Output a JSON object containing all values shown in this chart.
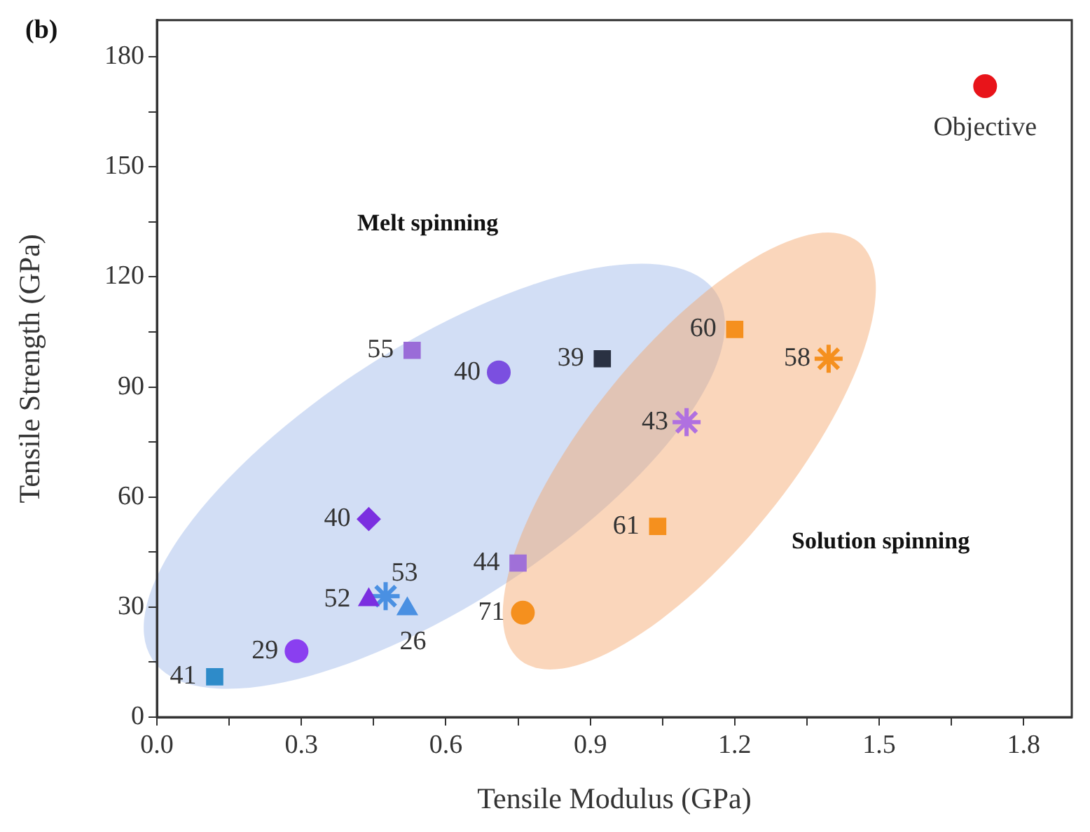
{
  "chart_data": {
    "type": "scatter",
    "xlabel": "Tensile Modulus (GPa)",
    "ylabel": "Tensile Strength (GPa)",
    "xlim": [
      0,
      1.9
    ],
    "ylim": [
      0,
      190
    ],
    "xticks": [
      {
        "value": 0,
        "label": "0.0"
      },
      {
        "value": 0.15,
        "label": null
      },
      {
        "value": 0.3,
        "label": "0.3"
      },
      {
        "value": 0.45,
        "label": null
      },
      {
        "value": 0.6,
        "label": "0.6"
      },
      {
        "value": 0.75,
        "label": null
      },
      {
        "value": 0.9,
        "label": "0.9"
      },
      {
        "value": 1.05,
        "label": null
      },
      {
        "value": 1.2,
        "label": "1.2"
      },
      {
        "value": 1.35,
        "label": null
      },
      {
        "value": 1.5,
        "label": "1.5"
      },
      {
        "value": 1.65,
        "label": null
      },
      {
        "value": 1.8,
        "label": "1.8"
      }
    ],
    "yticks": [
      0,
      {
        "value": 15,
        "label": null
      },
      30,
      {
        "value": 45,
        "label": null
      },
      60,
      {
        "value": 75,
        "label": null
      },
      90,
      {
        "value": 105,
        "label": null
      },
      120,
      {
        "value": 135,
        "label": null
      },
      150,
      {
        "value": 165,
        "label": null
      },
      180
    ],
    "grid": false,
    "legend": false,
    "series": [
      {
        "x": [
          0.12
        ],
        "values": [
          11
        ],
        "color": "#2e8bc9",
        "marker": "square"
      },
      {
        "x": [
          0.29
        ],
        "values": [
          18
        ],
        "color": "#8a3ff0",
        "marker": "circle"
      },
      {
        "x": [
          0.44
        ],
        "values": [
          32
        ],
        "color": "#7b2fe0",
        "marker": "triangle"
      },
      {
        "x": [
          0.475
        ],
        "values": [
          33
        ],
        "color": "#4a90e2",
        "marker": "cross"
      },
      {
        "x": [
          0.52
        ],
        "values": [
          29.5
        ],
        "color": "#4a90e2",
        "marker": "triangle"
      },
      {
        "x": [
          0.44
        ],
        "values": [
          54
        ],
        "color": "#7b2fe0",
        "marker": "diamond"
      },
      {
        "x": [
          0.53
        ],
        "values": [
          100
        ],
        "color": "#9a6cd8",
        "marker": "square"
      },
      {
        "x": [
          0.71
        ],
        "values": [
          94
        ],
        "color": "#7b4fe0",
        "marker": "circle"
      },
      {
        "x": [
          0.925
        ],
        "values": [
          97.7
        ],
        "color": "#2a3142",
        "marker": "square"
      },
      {
        "x": [
          0.75
        ],
        "values": [
          42
        ],
        "color": "#a070d8",
        "marker": "square"
      },
      {
        "x": [
          0.76
        ],
        "values": [
          28.5
        ],
        "color": "#f5901e",
        "marker": "circle"
      },
      {
        "x": [
          1.2
        ],
        "values": [
          105.7
        ],
        "color": "#f5901e",
        "marker": "square"
      },
      {
        "x": [
          1.395
        ],
        "values": [
          97.7
        ],
        "color": "#f5901e",
        "marker": "cross"
      },
      {
        "x": [
          1.1
        ],
        "values": [
          80.4
        ],
        "color": "#b070e0",
        "marker": "cross"
      },
      {
        "x": [
          1.04
        ],
        "values": [
          52
        ],
        "color": "#f5901e",
        "marker": "square"
      },
      {
        "x": [
          1.72
        ],
        "values": [
          172
        ],
        "color": "#e8141a",
        "marker": "circle"
      }
    ],
    "annotations": [
      "(b)",
      "Melt spinning",
      "Solution spinning",
      {
        "text": "41",
        "x": 0.12,
        "y": 11
      },
      {
        "text": "29",
        "x": 0.29,
        "y": 18
      },
      {
        "text": "52",
        "x": 0.44,
        "y": 32
      },
      {
        "text": "53",
        "x": 0.475,
        "y": 33
      },
      {
        "text": "26",
        "x": 0.52,
        "y": 29.5
      },
      {
        "text": "40",
        "x": 0.44,
        "y": 54
      },
      {
        "text": "55",
        "x": 0.53,
        "y": 100
      },
      {
        "text": "40",
        "x": 0.71,
        "y": 94
      },
      {
        "text": "39",
        "x": 0.925,
        "y": 97.7
      },
      {
        "text": "44",
        "x": 0.75,
        "y": 42
      },
      {
        "text": "71",
        "x": 0.76,
        "y": 28.5
      },
      {
        "text": "60",
        "x": 1.2,
        "y": 105.7
      },
      {
        "text": "58",
        "x": 1.395,
        "y": 97.7
      },
      {
        "text": "43",
        "x": 1.1,
        "y": 80.4
      },
      {
        "text": "61",
        "x": 1.04,
        "y": 52
      },
      {
        "text": "Objective",
        "x": 1.72,
        "y": 172
      }
    ]
  }
}
